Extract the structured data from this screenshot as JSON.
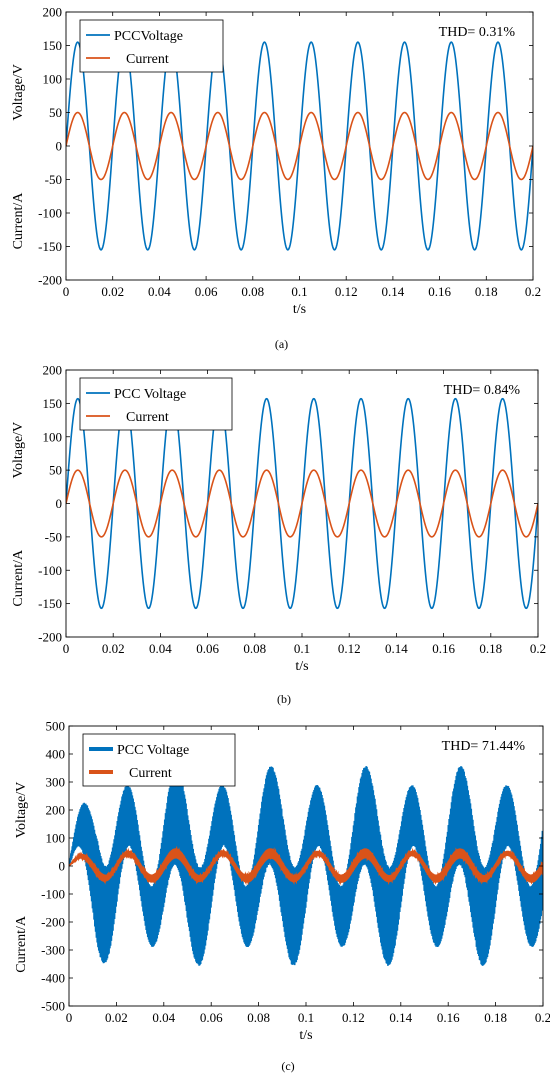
{
  "chart_data": [
    {
      "type": "line",
      "panel_label": "(a)",
      "annotation": "THD= 0.31%",
      "xlabel": "t/s",
      "ylabel_top": "Voltage/V",
      "ylabel_bottom": "Current/A",
      "xlim": [
        0,
        0.2
      ],
      "ylim": [
        -200,
        200
      ],
      "xticks": [
        0,
        0.02,
        0.04,
        0.06,
        0.08,
        0.1,
        0.12,
        0.14,
        0.16,
        0.18,
        0.2
      ],
      "xtick_labels": [
        "0",
        "0.02",
        "0.04",
        "0.06",
        "0.08",
        "0.1",
        "0.12",
        "0.14",
        "0.16",
        "0.18",
        "0.2"
      ],
      "yticks": [
        -200,
        -150,
        -100,
        -50,
        0,
        50,
        100,
        150,
        200
      ],
      "ytick_labels": [
        "-200",
        "-150",
        "-100",
        "-50",
        "0",
        "50",
        "100",
        "150",
        "200"
      ],
      "legend_position": "top-left",
      "frequency_hz": 50,
      "series": [
        {
          "name": "PCCVoltage",
          "color": "#0072BD",
          "amplitude": 155,
          "ripple": 0,
          "linewidth": 1.6
        },
        {
          "name": "Current",
          "color": "#D95319",
          "amplitude": 50,
          "ripple": 0,
          "linewidth": 1.6
        }
      ]
    },
    {
      "type": "line",
      "panel_label": "(b)",
      "annotation": "THD= 0.84%",
      "xlabel": "t/s",
      "ylabel_top": "Voltage/V",
      "ylabel_bottom": "Current/A",
      "xlim": [
        0,
        0.2
      ],
      "ylim": [
        -200,
        200
      ],
      "xticks": [
        0,
        0.02,
        0.04,
        0.06,
        0.08,
        0.1,
        0.12,
        0.14,
        0.16,
        0.18,
        0.2
      ],
      "xtick_labels": [
        "0",
        "0.02",
        "0.04",
        "0.06",
        "0.08",
        "0.1",
        "0.12",
        "0.14",
        "0.16",
        "0.18",
        "0.2"
      ],
      "yticks": [
        -200,
        -150,
        -100,
        -50,
        0,
        50,
        100,
        150,
        200
      ],
      "ytick_labels": [
        "-200",
        "-150",
        "-100",
        "-50",
        "0",
        "50",
        "100",
        "150",
        "200"
      ],
      "legend_position": "top-left",
      "frequency_hz": 50,
      "series": [
        {
          "name": "PCC Voltage",
          "color": "#0072BD",
          "amplitude": 157,
          "ripple": 0,
          "linewidth": 1.6
        },
        {
          "name": "Current",
          "color": "#D95319",
          "amplitude": 50,
          "ripple": 0,
          "linewidth": 1.6
        }
      ]
    },
    {
      "type": "line",
      "panel_label": "(c)",
      "annotation": "THD= 71.44%",
      "xlabel": "t/s",
      "ylabel_top": "Voltage/V",
      "ylabel_bottom": "Current/A",
      "xlim": [
        0,
        0.2
      ],
      "ylim": [
        -500,
        500
      ],
      "xticks": [
        0,
        0.02,
        0.04,
        0.06,
        0.08,
        0.1,
        0.12,
        0.14,
        0.16,
        0.18,
        0.2
      ],
      "xtick_labels": [
        "0",
        "0.02",
        "0.04",
        "0.06",
        "0.08",
        "0.1",
        "0.12",
        "0.14",
        "0.16",
        "0.18",
        "0.2"
      ],
      "yticks": [
        -500,
        -400,
        -300,
        -200,
        -100,
        0,
        100,
        200,
        300,
        400,
        500
      ],
      "ytick_labels": [
        "-500",
        "-400",
        "-300",
        "-200",
        "-100",
        "0",
        "100",
        "200",
        "300",
        "400",
        "500"
      ],
      "legend_position": "top-left",
      "frequency_hz": 50,
      "series": [
        {
          "name": "PCC Voltage",
          "color": "#0072BD",
          "amplitude": 180,
          "ripple": 190,
          "linewidth": 1.6
        },
        {
          "name": "Current",
          "color": "#D95319",
          "amplitude": 45,
          "ripple": 18,
          "linewidth": 1.6
        }
      ]
    }
  ]
}
